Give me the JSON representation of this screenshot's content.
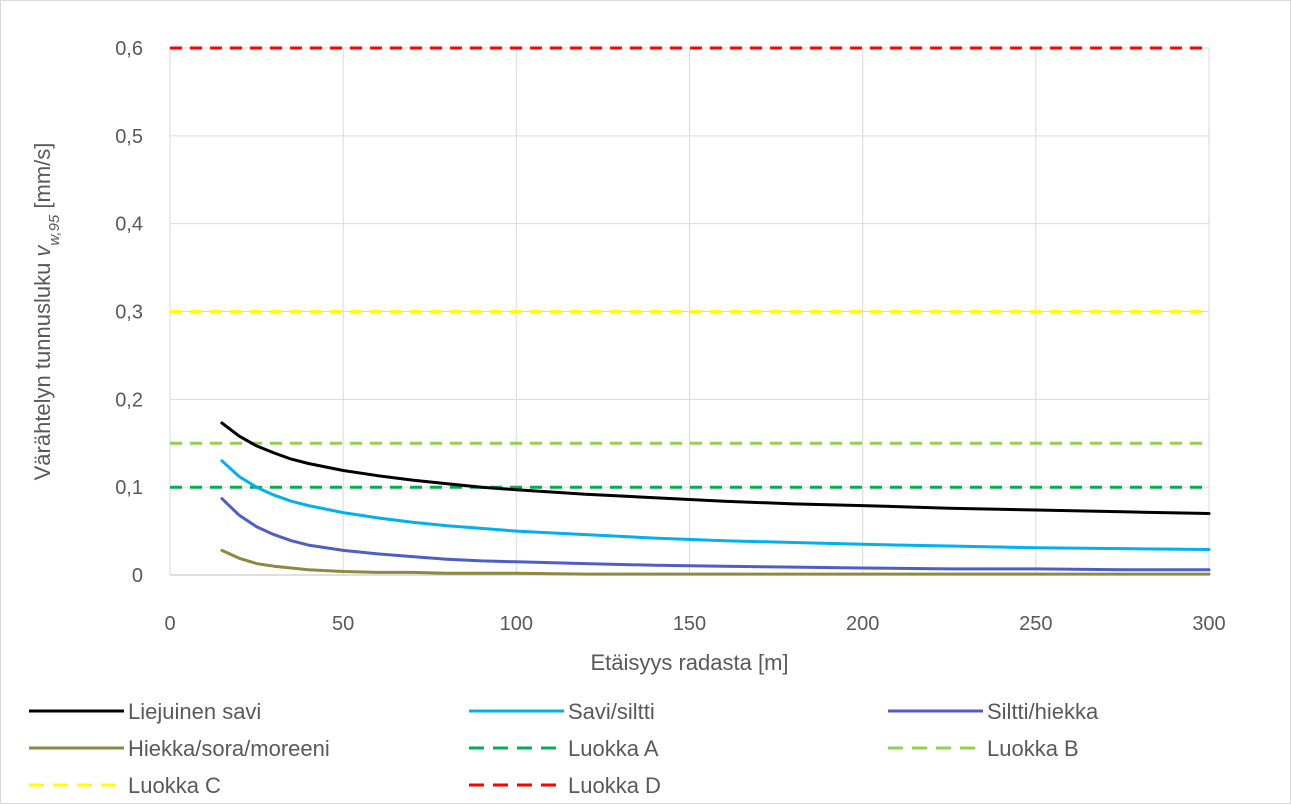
{
  "chart_data": {
    "type": "line",
    "title": "",
    "xlabel": "Etäisyys radasta [m]",
    "ylabel": {
      "prefix": "Värähtelyn tunnusluku ",
      "symbol": "v",
      "subscript": "w,95",
      "suffix": " [mm/s]"
    },
    "xlim": [
      0,
      300
    ],
    "ylim": [
      0,
      0.6
    ],
    "x_ticks": [
      0,
      50,
      100,
      150,
      200,
      250,
      300
    ],
    "x_tick_labels": [
      "0",
      "50",
      "100",
      "150",
      "200",
      "250",
      "300"
    ],
    "y_ticks": [
      0,
      0.1,
      0.2,
      0.3,
      0.4,
      0.5,
      0.6
    ],
    "y_tick_labels": [
      "0",
      "0,1",
      "0,2",
      "0,3",
      "0,4",
      "0,5",
      "0,6"
    ],
    "grid": true,
    "legend_position": "bottom",
    "x": [
      15,
      20,
      25,
      30,
      35,
      40,
      50,
      60,
      70,
      80,
      90,
      100,
      120,
      140,
      160,
      180,
      200,
      225,
      250,
      275,
      300
    ],
    "series": [
      {
        "name": "Liejuinen savi",
        "color": "#000000",
        "dash": "solid",
        "values": [
          0.173,
          0.158,
          0.147,
          0.139,
          0.132,
          0.127,
          0.119,
          0.113,
          0.108,
          0.104,
          0.1,
          0.097,
          0.092,
          0.088,
          0.084,
          0.081,
          0.079,
          0.076,
          0.074,
          0.072,
          0.07
        ]
      },
      {
        "name": "Savi/siltti",
        "color": "#00b0f0",
        "dash": "solid",
        "values": [
          0.13,
          0.112,
          0.1,
          0.091,
          0.084,
          0.079,
          0.071,
          0.065,
          0.06,
          0.056,
          0.053,
          0.05,
          0.046,
          0.042,
          0.039,
          0.037,
          0.035,
          0.033,
          0.031,
          0.03,
          0.029
        ]
      },
      {
        "name": "Siltti/hiekka",
        "color": "#4f5dc9",
        "dash": "solid",
        "values": [
          0.087,
          0.068,
          0.055,
          0.046,
          0.039,
          0.034,
          0.028,
          0.024,
          0.021,
          0.018,
          0.016,
          0.015,
          0.013,
          0.011,
          0.01,
          0.009,
          0.008,
          0.007,
          0.007,
          0.006,
          0.006
        ]
      },
      {
        "name": "Hiekka/sora/moreeni",
        "color": "#8b8a3e",
        "dash": "solid",
        "values": [
          0.028,
          0.019,
          0.013,
          0.01,
          0.008,
          0.006,
          0.004,
          0.003,
          0.003,
          0.002,
          0.002,
          0.002,
          0.001,
          0.001,
          0.001,
          0.001,
          0.001,
          0.001,
          0.001,
          0.001,
          0.001
        ]
      },
      {
        "name": "Luokka A",
        "color": "#00b050",
        "dash": "dashed",
        "values": [
          0.1,
          0.1,
          0.1,
          0.1,
          0.1,
          0.1,
          0.1,
          0.1,
          0.1,
          0.1,
          0.1,
          0.1,
          0.1,
          0.1,
          0.1,
          0.1,
          0.1,
          0.1,
          0.1,
          0.1,
          0.1
        ]
      },
      {
        "name": "Luokka B",
        "color": "#92d050",
        "dash": "dashed",
        "values": [
          0.15,
          0.15,
          0.15,
          0.15,
          0.15,
          0.15,
          0.15,
          0.15,
          0.15,
          0.15,
          0.15,
          0.15,
          0.15,
          0.15,
          0.15,
          0.15,
          0.15,
          0.15,
          0.15,
          0.15,
          0.15
        ]
      },
      {
        "name": "Luokka C",
        "color": "#ffff00",
        "dash": "dashed",
        "values": [
          0.3,
          0.3,
          0.3,
          0.3,
          0.3,
          0.3,
          0.3,
          0.3,
          0.3,
          0.3,
          0.3,
          0.3,
          0.3,
          0.3,
          0.3,
          0.3,
          0.3,
          0.3,
          0.3,
          0.3,
          0.3
        ]
      },
      {
        "name": "Luokka D",
        "color": "#ff0000",
        "dash": "dashed",
        "values": [
          0.6,
          0.6,
          0.6,
          0.6,
          0.6,
          0.6,
          0.6,
          0.6,
          0.6,
          0.6,
          0.6,
          0.6,
          0.6,
          0.6,
          0.6,
          0.6,
          0.6,
          0.6,
          0.6,
          0.6,
          0.6
        ]
      }
    ]
  }
}
